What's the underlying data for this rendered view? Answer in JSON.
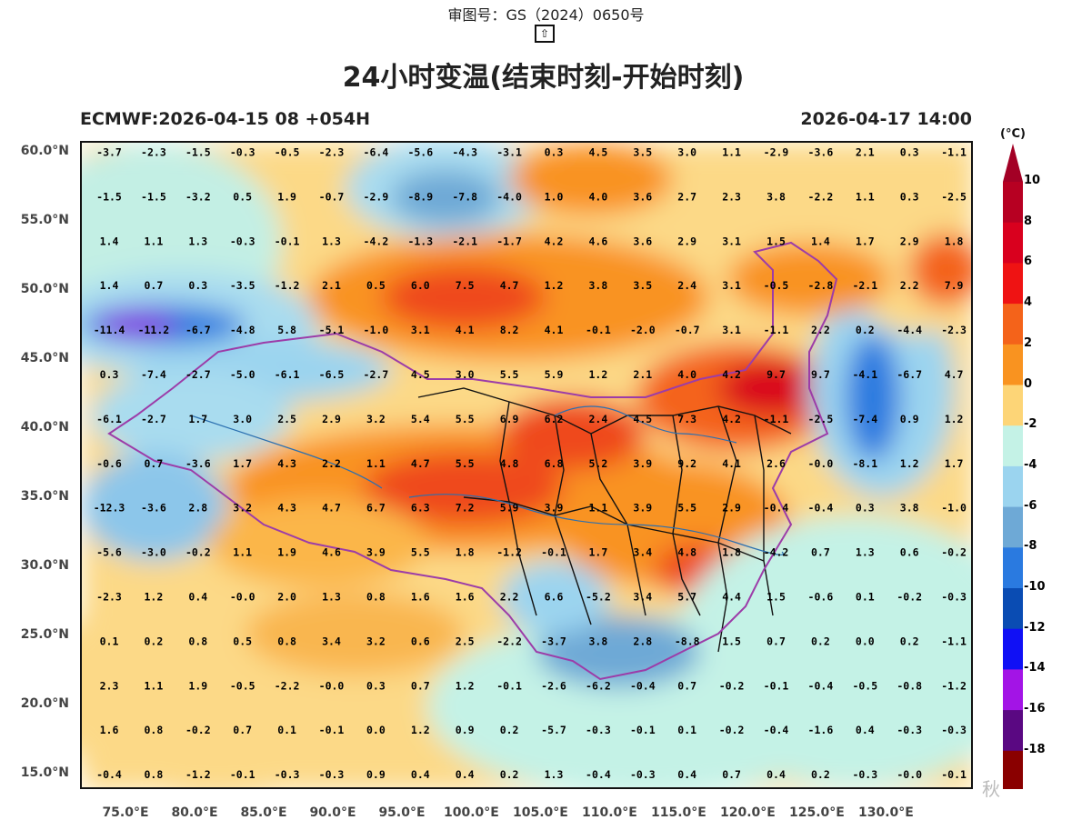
{
  "header": {
    "approval_number": "审图号：GS（2024）0650号",
    "up_arrow": "⇧",
    "title": "24小时变温(结束时刻-开始时刻)",
    "model_run": "ECMWF:2026-04-15 08 +054H",
    "valid_time": "2026-04-17 14:00"
  },
  "map": {
    "lat_labels": [
      "60.0°N",
      "55.0°N",
      "50.0°N",
      "45.0°N",
      "40.0°N",
      "35.0°N",
      "30.0°N",
      "25.0°N",
      "20.0°N",
      "15.0°N"
    ],
    "lon_labels": [
      "75.0°E",
      "80.0°E",
      "85.0°E",
      "90.0°E",
      "95.0°E",
      "100.0°E",
      "105.0°E",
      "110.0°E",
      "115.0°E",
      "120.0°E",
      "125.0°E",
      "130.0°E"
    ],
    "value_grid": [
      [
        "-3.7",
        "-2.3",
        "-1.5",
        "-0.3",
        "-0.5",
        "-2.3",
        "-6.4",
        "-5.6",
        "-4.3",
        "-3.1",
        "0.3",
        "4.5",
        "3.5",
        "3.0",
        "1.1",
        "-2.9",
        "-3.6",
        "2.1",
        "0.3",
        "-1.1"
      ],
      [
        "-1.5",
        "-1.5",
        "-3.2",
        "0.5",
        "1.9",
        "-0.7",
        "-2.9",
        "-8.9",
        "-7.8",
        "-4.0",
        "1.0",
        "4.0",
        "3.6",
        "2.7",
        "2.3",
        "3.8",
        "-2.2",
        "1.1",
        "0.3",
        "-2.5"
      ],
      [
        "1.4",
        "1.1",
        "1.3",
        "-0.3",
        "-0.1",
        "1.3",
        "-4.2",
        "-1.3",
        "-2.1",
        "-1.7",
        "4.2",
        "4.6",
        "3.6",
        "2.9",
        "3.1",
        "1.5",
        "1.4",
        "1.7",
        "2.9",
        "1.8"
      ],
      [
        "1.4",
        "0.7",
        "0.3",
        "-3.5",
        "-1.2",
        "2.1",
        "0.5",
        "6.0",
        "7.5",
        "4.7",
        "1.2",
        "3.8",
        "3.5",
        "2.4",
        "3.1",
        "-0.5",
        "-2.8",
        "-2.1",
        "2.2",
        "7.9"
      ],
      [
        "-11.4",
        "-11.2",
        "-6.7",
        "-4.8",
        "5.8",
        "-5.1",
        "-1.0",
        "3.1",
        "4.1",
        "8.2",
        "4.1",
        "-0.1",
        "-2.0",
        "-0.7",
        "3.1",
        "-1.1",
        "2.2",
        "0.2",
        "-4.4",
        "-2.3"
      ],
      [
        "0.3",
        "-7.4",
        "-2.7",
        "-5.0",
        "-6.1",
        "-6.5",
        "-2.7",
        "4.5",
        "3.0",
        "5.5",
        "5.9",
        "1.2",
        "2.1",
        "4.0",
        "4.2",
        "9.7",
        "9.7",
        "-4.1",
        "-6.7",
        "4.7"
      ],
      [
        "-6.1",
        "-2.7",
        "1.7",
        "3.0",
        "2.5",
        "2.9",
        "3.2",
        "5.4",
        "5.5",
        "6.9",
        "6.2",
        "2.4",
        "4.5",
        "7.3",
        "4.2",
        "-1.1",
        "-2.5",
        "-7.4",
        "0.9",
        "1.2"
      ],
      [
        "-0.6",
        "0.7",
        "-3.6",
        "1.7",
        "4.3",
        "2.2",
        "1.1",
        "4.7",
        "5.5",
        "4.8",
        "6.8",
        "5.2",
        "3.9",
        "9.2",
        "4.1",
        "2.6",
        "-0.0",
        "-8.1",
        "1.2",
        "1.7"
      ],
      [
        "-12.3",
        "-3.6",
        "2.8",
        "3.2",
        "4.3",
        "4.7",
        "6.7",
        "6.3",
        "7.2",
        "5.9",
        "3.9",
        "1.1",
        "3.9",
        "5.5",
        "2.9",
        "-0.4",
        "-0.4",
        "0.3",
        "3.8",
        "-1.0"
      ],
      [
        "-5.6",
        "-3.0",
        "-0.2",
        "1.1",
        "1.9",
        "4.6",
        "3.9",
        "5.5",
        "1.8",
        "-1.2",
        "-0.1",
        "1.7",
        "3.4",
        "4.8",
        "1.8",
        "-4.2",
        "0.7",
        "1.3",
        "0.6",
        "-0.2"
      ],
      [
        "-2.3",
        "1.2",
        "0.4",
        "-0.0",
        "2.0",
        "1.3",
        "0.8",
        "1.6",
        "1.6",
        "2.2",
        "6.6",
        "-5.2",
        "3.4",
        "5.7",
        "4.4",
        "1.5",
        "-0.6",
        "0.1",
        "-0.2",
        "-0.3"
      ],
      [
        "0.1",
        "0.2",
        "0.8",
        "0.5",
        "0.8",
        "3.4",
        "3.2",
        "0.6",
        "2.5",
        "-2.2",
        "-3.7",
        "3.8",
        "2.8",
        "-8.8",
        "1.5",
        "0.7",
        "0.2",
        "0.0",
        "0.2",
        "-1.1"
      ],
      [
        "2.3",
        "1.1",
        "1.9",
        "-0.5",
        "-2.2",
        "-0.0",
        "0.3",
        "0.7",
        "1.2",
        "-0.1",
        "-2.6",
        "-6.2",
        "-0.4",
        "0.7",
        "-0.2",
        "-0.1",
        "-0.4",
        "-0.5",
        "-0.8",
        "-1.2"
      ],
      [
        "1.6",
        "0.8",
        "-0.2",
        "0.7",
        "0.1",
        "-0.1",
        "0.0",
        "1.2",
        "0.9",
        "0.2",
        "-5.7",
        "-0.3",
        "-0.1",
        "0.1",
        "-0.2",
        "-0.4",
        "-1.6",
        "0.4",
        "-0.3",
        "-0.3"
      ],
      [
        "-0.4",
        "0.8",
        "-1.2",
        "-0.1",
        "-0.3",
        "-0.3",
        "0.9",
        "0.4",
        "0.4",
        "0.2",
        "1.3",
        "-0.4",
        "-0.3",
        "0.4",
        "0.7",
        "0.4",
        "0.2",
        "-0.3",
        "-0.0",
        "-0.1"
      ]
    ]
  },
  "colorbar": {
    "unit": "(°C)",
    "labels": [
      "10",
      "8",
      "6",
      "4",
      "2",
      "0",
      "-2",
      "-4",
      "-6",
      "-8",
      "-10",
      "-12",
      "-14",
      "-16",
      "-18"
    ],
    "colors": [
      "#b70022",
      "#d9001e",
      "#ef1313",
      "#f4631a",
      "#f99320",
      "#fdd577",
      "#c4f2e6",
      "#9bd4ef",
      "#6ea9d6",
      "#2a7ae0",
      "#0a4cb3",
      "#1010f5",
      "#a314e6",
      "#5a0882",
      "#8a0000"
    ],
    "top_arrow_color": "#a30025",
    "bottom_arrow_color": "#4a0000"
  },
  "watermark": "秋"
}
